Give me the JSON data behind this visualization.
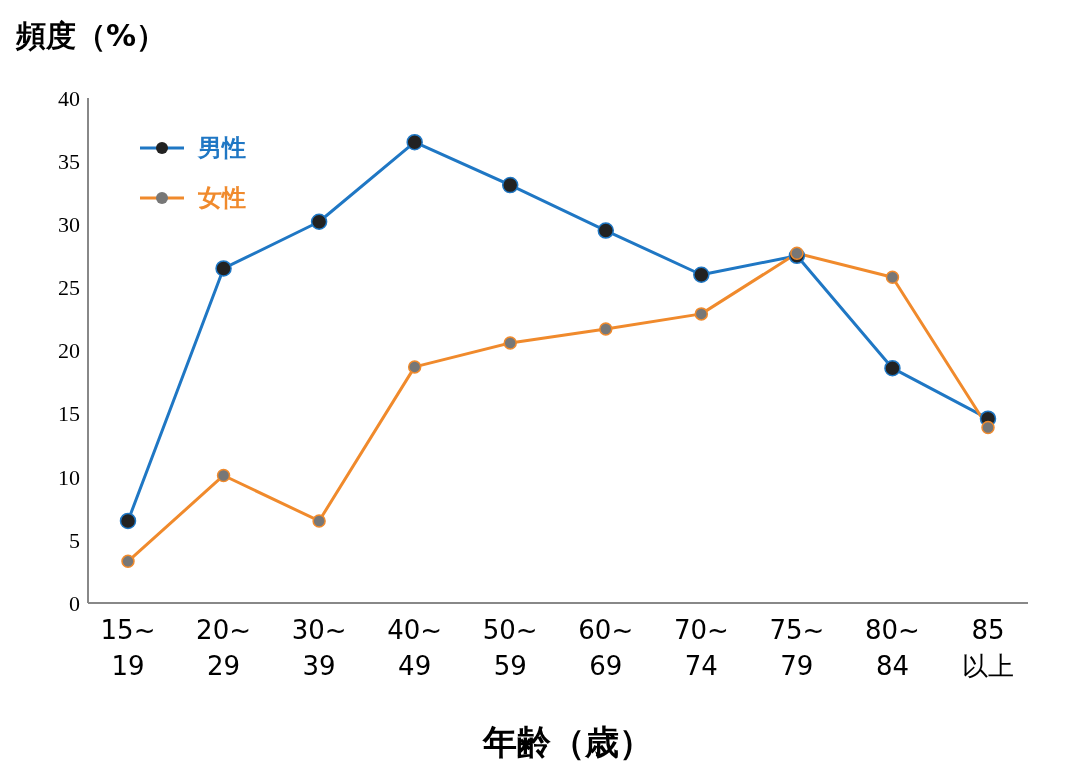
{
  "chart_data": {
    "type": "line",
    "ylabel": "頻度（%）",
    "xlabel": "年齢（歳）",
    "categories": [
      "15~\n19",
      "20~\n29",
      "30~\n39",
      "40~\n49",
      "50~\n59",
      "60~\n69",
      "70~\n74",
      "75~\n79",
      "80~\n84",
      "85\n以上"
    ],
    "series": [
      {
        "name": "男性",
        "color": "#1f77c4",
        "values": [
          6.5,
          26.5,
          30.2,
          36.5,
          33.1,
          29.5,
          26.0,
          27.5,
          18.6,
          14.6
        ]
      },
      {
        "name": "女性",
        "color": "#f08a2c",
        "values": [
          3.3,
          10.1,
          6.5,
          18.7,
          20.6,
          21.7,
          22.9,
          27.7,
          25.8,
          13.9
        ]
      }
    ],
    "ylim": [
      0,
      40
    ],
    "yticks": [
      0,
      5,
      10,
      15,
      20,
      25,
      30,
      35,
      40
    ],
    "grid": false,
    "legend": "top left",
    "marker": "circle",
    "line_style": "solid"
  }
}
